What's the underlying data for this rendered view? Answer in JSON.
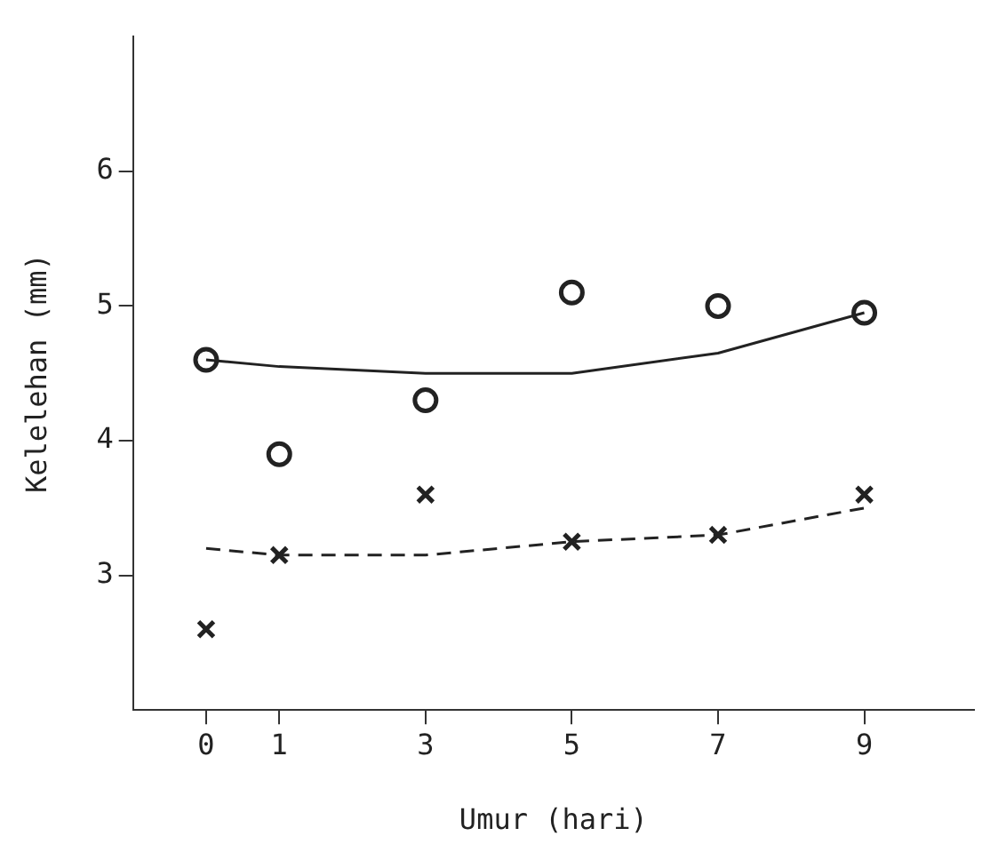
{
  "chart_data": {
    "type": "scatter",
    "xlabel": "Umur (hari)",
    "ylabel": "Kelelehan (mm)",
    "x": [
      0,
      1,
      3,
      5,
      7,
      9
    ],
    "xlim": [
      -1,
      10.5
    ],
    "xticks": [
      0,
      1,
      3,
      5,
      7,
      9
    ],
    "ylim": [
      2,
      7
    ],
    "yticks": [
      3,
      4,
      5,
      6
    ],
    "grid": false,
    "legend": false,
    "series": [
      {
        "type": "scatter",
        "marker": "circle",
        "color": "#222222",
        "values": [
          4.6,
          3.9,
          4.3,
          5.1,
          5.0,
          4.95
        ]
      },
      {
        "type": "scatter",
        "marker": "cross",
        "color": "#222222",
        "values": [
          2.6,
          3.15,
          3.6,
          3.25,
          3.3,
          3.6
        ]
      },
      {
        "type": "line",
        "marker": "none",
        "line_style": "solid",
        "color": "#222222",
        "values": [
          4.6,
          4.55,
          4.5,
          4.5,
          4.65,
          4.95
        ]
      },
      {
        "type": "line",
        "marker": "none",
        "line_style": "dashed",
        "color": "#222222",
        "values": [
          3.2,
          3.15,
          3.15,
          3.25,
          3.3,
          3.5
        ]
      }
    ]
  }
}
